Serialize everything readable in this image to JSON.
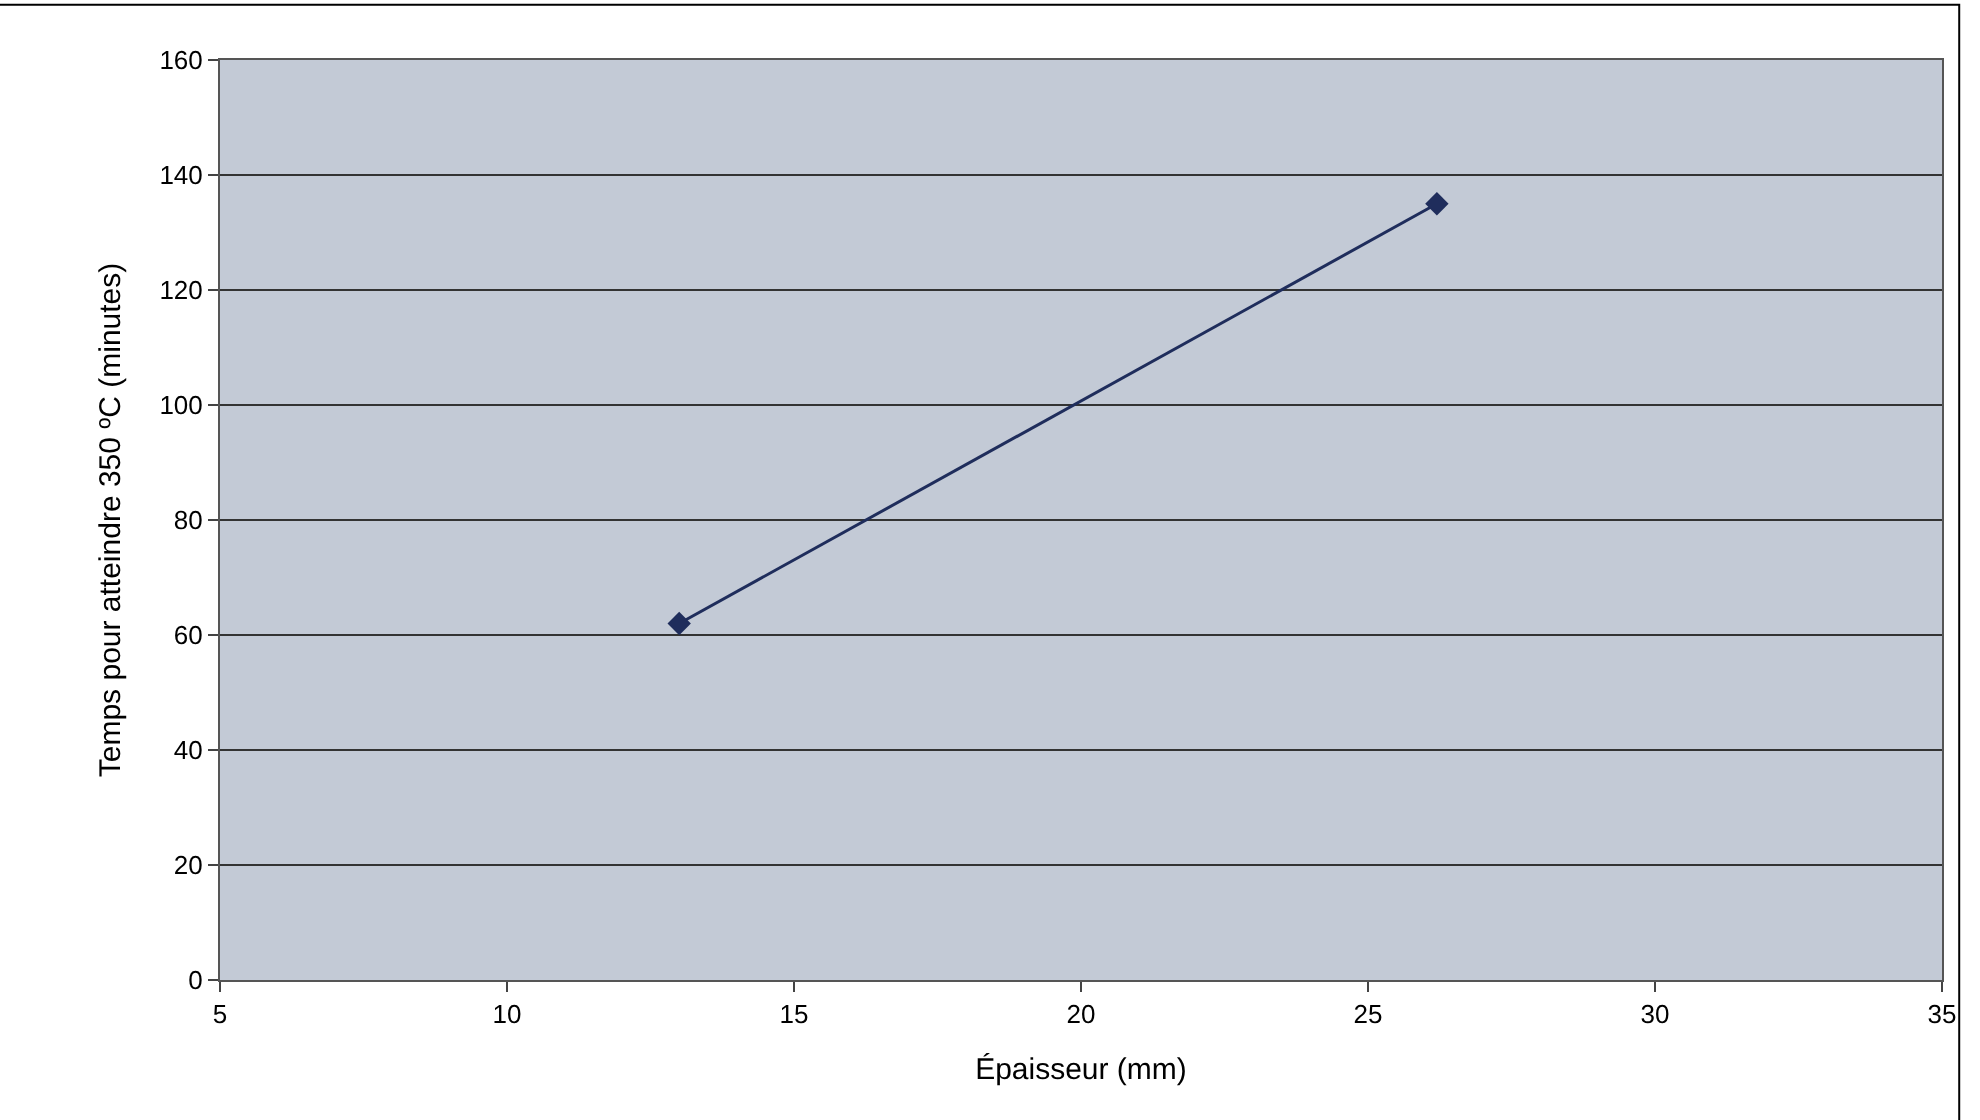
{
  "chart_data": {
    "type": "line",
    "xlabel": "Épaisseur (mm)",
    "ylabel": "Temps pour atteindre 350 ºC (minutes)",
    "x": [
      13,
      26.2
    ],
    "series": [
      {
        "color": "#1f2d5c",
        "values": [
          62,
          135
        ]
      }
    ],
    "xlim": [
      5,
      35
    ],
    "xticks": [
      5,
      10,
      15,
      20,
      25,
      30,
      35
    ],
    "ylim": [
      0,
      160
    ],
    "yticks": [
      0,
      20,
      40,
      60,
      80,
      100,
      120,
      140,
      160
    ],
    "grid": "y",
    "legend": false,
    "marker": "diamond",
    "line_style": "solid"
  }
}
